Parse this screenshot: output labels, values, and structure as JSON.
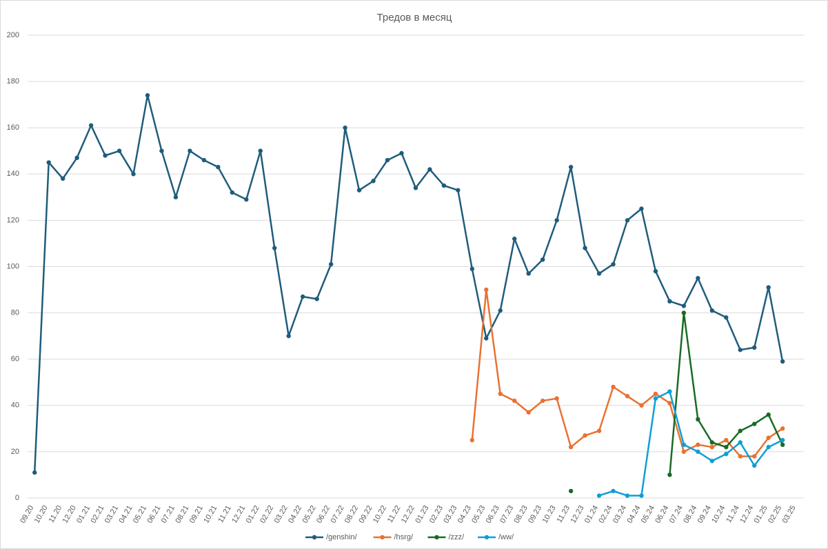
{
  "chart_data": {
    "type": "line",
    "title": "Тредов в месяц",
    "categories": [
      "09.20",
      "10.20",
      "11.20",
      "12.20",
      "01.21",
      "02.21",
      "03.21",
      "04.21",
      "05.21",
      "06.21",
      "07.21",
      "08.21",
      "09.21",
      "10.21",
      "11.21",
      "12.21",
      "01.22",
      "02.22",
      "03.22",
      "04.22",
      "05.22",
      "06.22",
      "07.22",
      "08.22",
      "09.22",
      "10.22",
      "11.22",
      "12.22",
      "01.23",
      "02.23",
      "03.23",
      "04.23",
      "05.23",
      "06.23",
      "07.23",
      "08.23",
      "09.23",
      "10.23",
      "11.23",
      "12.23",
      "01.24",
      "02.24",
      "03.24",
      "04.24",
      "05.24",
      "06.24",
      "07.24",
      "08.24",
      "09.24",
      "10.24",
      "11.24",
      "12.24",
      "01.25",
      "02.25",
      "03.25"
    ],
    "series": [
      {
        "name": "/genshin/",
        "color": "#1f5c7b",
        "values": [
          11,
          145,
          138,
          147,
          161,
          148,
          150,
          140,
          174,
          150,
          130,
          150,
          146,
          143,
          132,
          129,
          150,
          108,
          70,
          87,
          86,
          101,
          160,
          133,
          137,
          146,
          149,
          134,
          142,
          135,
          133,
          99,
          69,
          81,
          112,
          97,
          103,
          120,
          143,
          108,
          97,
          101,
          120,
          125,
          98,
          85,
          83,
          95,
          81,
          78,
          64,
          65,
          91,
          59,
          null
        ]
      },
      {
        "name": "/hsrg/",
        "color": "#e97132",
        "values": [
          null,
          null,
          null,
          null,
          null,
          null,
          null,
          null,
          null,
          null,
          null,
          null,
          null,
          null,
          null,
          null,
          null,
          null,
          null,
          null,
          null,
          null,
          null,
          null,
          null,
          null,
          null,
          null,
          null,
          null,
          null,
          25,
          90,
          45,
          42,
          37,
          42,
          43,
          22,
          27,
          29,
          48,
          44,
          40,
          45,
          41,
          20,
          23,
          22,
          25,
          18,
          18,
          26,
          30,
          null
        ]
      },
      {
        "name": "/zzz/",
        "color": "#196b24",
        "values": [
          null,
          null,
          null,
          null,
          null,
          null,
          null,
          null,
          null,
          null,
          null,
          null,
          null,
          null,
          null,
          null,
          null,
          null,
          null,
          null,
          null,
          null,
          null,
          null,
          null,
          null,
          null,
          null,
          null,
          null,
          null,
          null,
          null,
          null,
          null,
          null,
          null,
          null,
          3,
          null,
          null,
          null,
          null,
          null,
          null,
          10,
          80,
          34,
          24,
          22,
          29,
          32,
          36,
          23,
          null
        ]
      },
      {
        "name": "/ww/",
        "color": "#0f9ed5",
        "values": [
          null,
          null,
          null,
          null,
          null,
          null,
          null,
          null,
          null,
          null,
          null,
          null,
          null,
          null,
          null,
          null,
          null,
          null,
          null,
          null,
          null,
          null,
          null,
          null,
          null,
          null,
          null,
          null,
          null,
          null,
          null,
          null,
          null,
          null,
          null,
          null,
          null,
          null,
          null,
          null,
          1,
          3,
          1,
          1,
          43,
          46,
          23,
          20,
          16,
          19,
          24,
          14,
          22,
          25,
          null
        ]
      }
    ],
    "ylim": [
      0,
      200
    ],
    "yticks": [
      0,
      20,
      40,
      60,
      80,
      100,
      120,
      140,
      160,
      180,
      200
    ],
    "grid": true,
    "legend": "bottom"
  }
}
